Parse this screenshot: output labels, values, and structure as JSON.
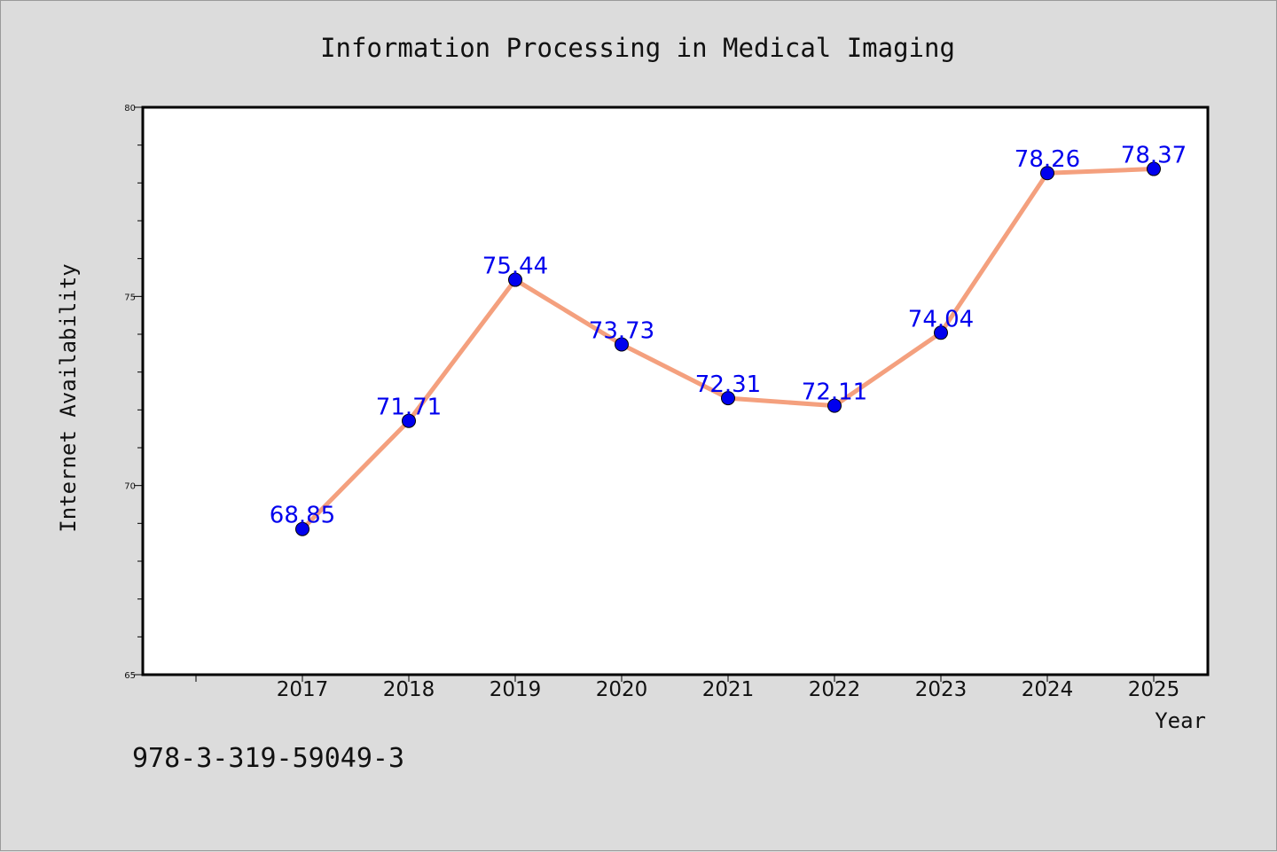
{
  "chart_data": {
    "type": "line",
    "title": "Information Processing in Medical Imaging",
    "xlabel": "Year",
    "ylabel": "Internet Availability",
    "categories": [
      "2017",
      "2018",
      "2019",
      "2020",
      "2021",
      "2022",
      "2023",
      "2024",
      "2025"
    ],
    "series": [
      {
        "values": [
          68.85,
          71.71,
          75.44,
          73.73,
          72.31,
          72.11,
          74.04,
          78.26,
          78.37
        ],
        "data_labels": [
          "68.85",
          "71.71",
          "75.44",
          "73.73",
          "72.31",
          "72.11",
          "74.04",
          "78.26",
          "78.37"
        ]
      }
    ],
    "ylim": [
      65,
      80
    ],
    "yticks": [
      "65",
      "70",
      "75",
      "80"
    ],
    "grid": false,
    "legend": "none"
  },
  "footer": {
    "text": "978-3-319-59049-3"
  },
  "colors": {
    "background": "#dcdcdc",
    "plot_background": "#ffffff",
    "line": "#f4a07e",
    "marker": "#0000ee",
    "data_label": "#0000ee"
  }
}
